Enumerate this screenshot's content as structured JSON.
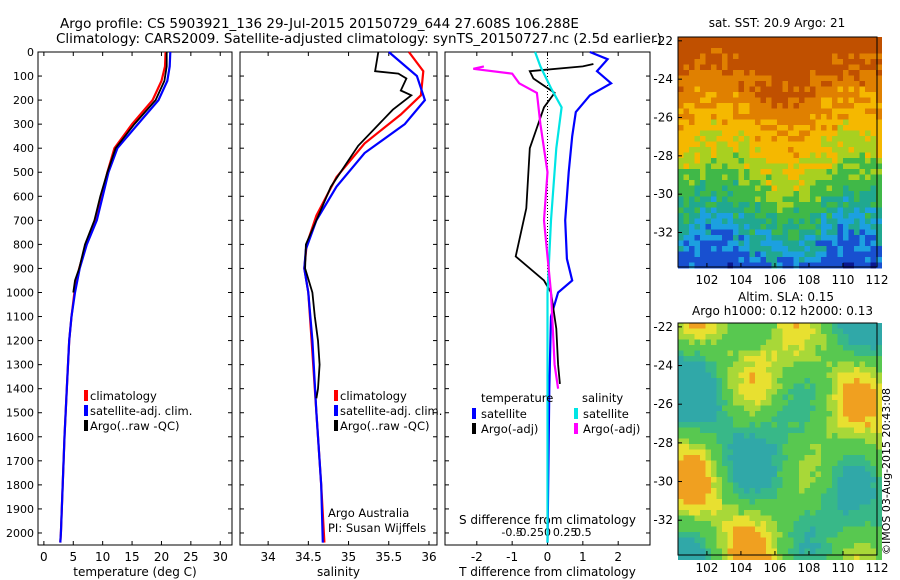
{
  "header": {
    "line1": "Argo profile: CS 5903921_136 29-Jul-2015 20150729_644 27.608S 106.288E",
    "line2": "Climatology: CARS2009. Satellite-adjusted climatology: synTS_20150727.nc (2.5d earlier)"
  },
  "credit": "©IMOS 03-Aug-2015 20:43:08",
  "colors": {
    "climatology": "#ff0000",
    "satellite": "#0000ff",
    "argo": "#000000",
    "sat_diff": "#00e5e5",
    "argo_diff": "#ff00ff"
  },
  "depth_axis": {
    "ticks": [
      0,
      100,
      200,
      300,
      400,
      500,
      600,
      700,
      800,
      900,
      1000,
      1100,
      1200,
      1300,
      1400,
      1500,
      1600,
      1700,
      1800,
      1900,
      2000
    ],
    "ylim": [
      2050,
      0
    ]
  },
  "chart_data": [
    {
      "type": "line",
      "id": "temperature",
      "xlabel": "temperature (deg C)",
      "xlim": [
        -1,
        32
      ],
      "xticks": [
        0,
        5,
        10,
        15,
        20,
        25,
        30
      ],
      "legend": [
        "climatology",
        "satellite-adj. clim.",
        "Argo(..raw -QC)"
      ],
      "series": [
        {
          "name": "climatology",
          "color": "#ff0000",
          "points": [
            [
              20.7,
              0
            ],
            [
              20.6,
              60
            ],
            [
              20.0,
              120
            ],
            [
              18.5,
              200
            ],
            [
              15.0,
              300
            ],
            [
              12.0,
              400
            ],
            [
              10.8,
              500
            ],
            [
              9.8,
              600
            ],
            [
              8.8,
              700
            ],
            [
              7.2,
              800
            ],
            [
              6.0,
              900
            ],
            [
              5.2,
              1000
            ],
            [
              4.7,
              1100
            ],
            [
              4.3,
              1200
            ],
            [
              3.9,
              1400
            ],
            [
              3.5,
              1600
            ],
            [
              3.2,
              1800
            ],
            [
              2.9,
              2000
            ],
            [
              2.8,
              2040
            ]
          ]
        },
        {
          "name": "satellite-adj. clim.",
          "color": "#0000ff",
          "points": [
            [
              21.5,
              0
            ],
            [
              21.4,
              60
            ],
            [
              21.0,
              120
            ],
            [
              19.5,
              200
            ],
            [
              16.0,
              300
            ],
            [
              12.5,
              400
            ],
            [
              11.0,
              500
            ],
            [
              10.0,
              600
            ],
            [
              9.0,
              700
            ],
            [
              7.3,
              800
            ],
            [
              6.1,
              900
            ],
            [
              5.3,
              1000
            ],
            [
              4.7,
              1100
            ],
            [
              4.3,
              1200
            ],
            [
              3.9,
              1400
            ],
            [
              3.5,
              1600
            ],
            [
              3.2,
              1800
            ],
            [
              2.9,
              2000
            ],
            [
              2.8,
              2040
            ]
          ]
        },
        {
          "name": "Argo(..raw -QC)",
          "color": "#000000",
          "points": [
            [
              20.9,
              0
            ],
            [
              20.9,
              60
            ],
            [
              20.5,
              120
            ],
            [
              19.0,
              200
            ],
            [
              15.4,
              300
            ],
            [
              12.2,
              400
            ],
            [
              10.8,
              500
            ],
            [
              9.6,
              600
            ],
            [
              8.6,
              700
            ],
            [
              7.0,
              800
            ],
            [
              6.0,
              900
            ],
            [
              5.3,
              950
            ],
            [
              5.0,
              1000
            ]
          ]
        }
      ]
    },
    {
      "type": "line",
      "id": "salinity",
      "xlabel": "salinity",
      "xlim": [
        33.65,
        36.1
      ],
      "xticks": [
        34,
        34.5,
        35,
        35.5,
        36
      ],
      "legend": [
        "climatology",
        "satellite-adj. clim.",
        "Argo(..raw -QC)"
      ],
      "series": [
        {
          "name": "climatology",
          "color": "#ff0000",
          "points": [
            [
              35.75,
              0
            ],
            [
              35.93,
              80
            ],
            [
              35.9,
              180
            ],
            [
              35.65,
              260
            ],
            [
              35.2,
              380
            ],
            [
              34.85,
              520
            ],
            [
              34.6,
              680
            ],
            [
              34.48,
              800
            ],
            [
              34.45,
              900
            ],
            [
              34.5,
              1000
            ],
            [
              34.54,
              1200
            ],
            [
              34.6,
              1500
            ],
            [
              34.66,
              1800
            ],
            [
              34.7,
              2040
            ]
          ]
        },
        {
          "name": "satellite-adj. clim.",
          "color": "#0000ff",
          "points": [
            [
              35.5,
              0
            ],
            [
              35.85,
              100
            ],
            [
              35.95,
              200
            ],
            [
              35.7,
              300
            ],
            [
              35.2,
              420
            ],
            [
              34.85,
              560
            ],
            [
              34.6,
              700
            ],
            [
              34.47,
              820
            ],
            [
              34.45,
              900
            ],
            [
              34.5,
              1000
            ],
            [
              34.55,
              1200
            ],
            [
              34.6,
              1500
            ],
            [
              34.66,
              1800
            ],
            [
              34.68,
              2040
            ]
          ]
        },
        {
          "name": "Argo(..raw -QC)",
          "color": "#000000",
          "points": [
            [
              35.37,
              0
            ],
            [
              35.33,
              80
            ],
            [
              35.62,
              90
            ],
            [
              35.72,
              110
            ],
            [
              35.65,
              160
            ],
            [
              35.78,
              180
            ],
            [
              35.55,
              240
            ],
            [
              35.12,
              390
            ],
            [
              34.78,
              560
            ],
            [
              34.6,
              700
            ],
            [
              34.47,
              800
            ],
            [
              34.46,
              900
            ],
            [
              34.55,
              1000
            ],
            [
              34.58,
              1100
            ],
            [
              34.62,
              1200
            ],
            [
              34.64,
              1300
            ],
            [
              34.62,
              1400
            ],
            [
              34.6,
              1440
            ]
          ]
        }
      ]
    },
    {
      "type": "line",
      "id": "difference",
      "xlabel": "T difference from climatology",
      "xlabel2": "S difference from climatology",
      "xlim": [
        -2.9,
        2.9
      ],
      "xticks": [
        -2,
        -1,
        0,
        1,
        2
      ],
      "xticks_s": [
        "-0.5",
        "-0.25",
        "0",
        "0.25",
        "0.5"
      ],
      "legend_title_t": "temperature",
      "legend_title_s": "salinity",
      "legend": [
        "satellite",
        "Argo(-adj)",
        "satellite",
        "Argo(-adj)"
      ],
      "series": [
        {
          "name": "satellite",
          "quantity": "temperature",
          "color": "#0000ff",
          "points": [
            [
              1.2,
              0
            ],
            [
              1.7,
              30
            ],
            [
              1.4,
              80
            ],
            [
              1.8,
              130
            ],
            [
              1.2,
              180
            ],
            [
              0.8,
              250
            ],
            [
              0.7,
              350
            ],
            [
              0.6,
              500
            ],
            [
              0.5,
              700
            ],
            [
              0.55,
              860
            ],
            [
              0.7,
              950
            ],
            [
              0.3,
              1000
            ],
            [
              0.1,
              1100
            ],
            [
              0.05,
              1400
            ],
            [
              0,
              2040
            ]
          ]
        },
        {
          "name": "Argo(-adj)",
          "quantity": "temperature",
          "color": "#000000",
          "points": [
            [
              1.3,
              50
            ],
            [
              1.0,
              60
            ],
            [
              -0.5,
              80
            ],
            [
              -0.4,
              110
            ],
            [
              0.2,
              170
            ],
            [
              -0.1,
              230
            ],
            [
              -0.5,
              400
            ],
            [
              -0.6,
              650
            ],
            [
              -0.9,
              850
            ],
            [
              -0.1,
              950
            ],
            [
              0.1,
              1000
            ],
            [
              0.25,
              1150
            ],
            [
              0.3,
              1300
            ],
            [
              0.35,
              1380
            ]
          ]
        },
        {
          "name": "satellite",
          "quantity": "salinity",
          "color": "#00e5e5",
          "points": [
            [
              -0.35,
              0
            ],
            [
              -0.2,
              60
            ],
            [
              0.1,
              150
            ],
            [
              0.4,
              230
            ],
            [
              0.25,
              400
            ],
            [
              0.1,
              700
            ],
            [
              0.0,
              1000
            ],
            [
              0,
              2040
            ]
          ]
        },
        {
          "name": "Argo(-adj)",
          "quantity": "salinity",
          "color": "#ff00ff",
          "points": [
            [
              -1.8,
              60
            ],
            [
              -2.1,
              70
            ],
            [
              -1.0,
              90
            ],
            [
              -0.8,
              130
            ],
            [
              -0.3,
              170
            ],
            [
              -0.2,
              300
            ],
            [
              0.0,
              500
            ],
            [
              -0.1,
              700
            ],
            [
              0.1,
              1000
            ],
            [
              0.2,
              1300
            ],
            [
              0.3,
              1400
            ]
          ]
        }
      ]
    },
    {
      "type": "heatmap",
      "id": "sst-map",
      "title": "sat. SST: 20.9 Argo: 21",
      "xticks": [
        102,
        104,
        106,
        108,
        110,
        112
      ],
      "yticks": [
        -22,
        -24,
        -26,
        -28,
        -30,
        -32
      ],
      "xlim": [
        100.3,
        112
      ],
      "ylim": [
        -33.8,
        -21.8
      ]
    },
    {
      "type": "heatmap",
      "id": "sla-map",
      "title": "Altim. SLA: 0.15",
      "title2": "Argo h1000: 0.12 h2000: 0.13",
      "xticks": [
        102,
        104,
        106,
        108,
        110,
        112
      ],
      "yticks": [
        -22,
        -24,
        -26,
        -28,
        -30,
        -32
      ],
      "xlim": [
        100.3,
        112
      ],
      "ylim": [
        -33.8,
        -21.8
      ]
    }
  ],
  "annotations": {
    "institution": "Argo Australia",
    "pi": "PI: Susan Wijffels"
  }
}
